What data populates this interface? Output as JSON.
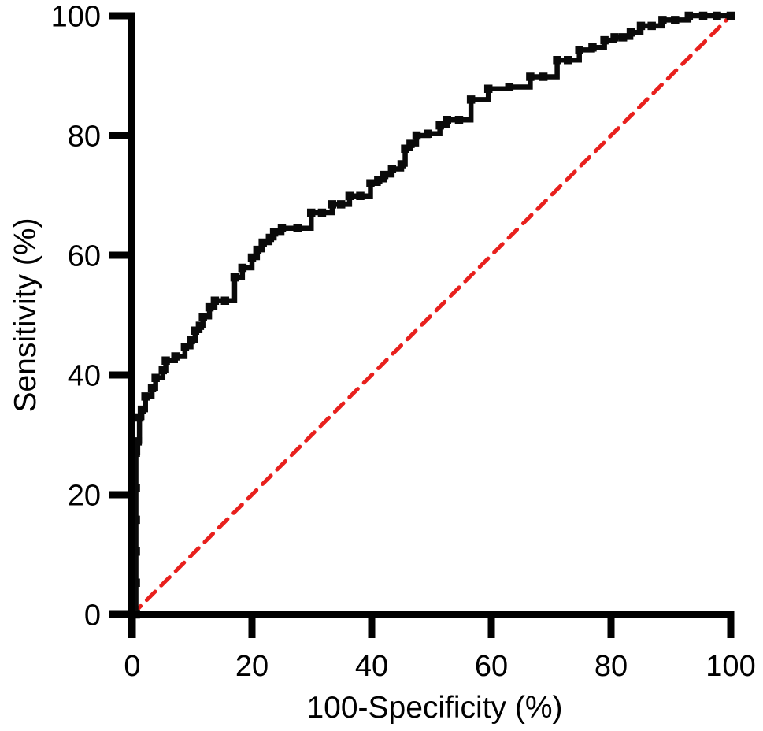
{
  "figure": {
    "background": "#ffffff"
  },
  "axes": {
    "color": "#000000",
    "x_title": "100-Specificity (%)",
    "y_title": "Sensitivity (%)"
  },
  "chart_data": {
    "type": "line",
    "subtype": "roc_step_curve",
    "title": "",
    "xlabel": "100-Specificity (%)",
    "ylabel": "Sensitivity (%)",
    "xlim": [
      0,
      100
    ],
    "ylim": [
      0,
      100
    ],
    "x_ticks": [
      0,
      20,
      40,
      60,
      80,
      100
    ],
    "y_ticks": [
      0,
      20,
      40,
      60,
      80,
      100
    ],
    "grid": false,
    "legend_position": "none",
    "series": [
      {
        "name": "reference-diagonal",
        "type": "line",
        "style": "dashed",
        "color": "#e8201d",
        "line_width": 5,
        "dash": [
          15,
          11
        ],
        "points": [
          [
            0,
            0
          ],
          [
            100,
            100
          ]
        ]
      },
      {
        "name": "roc-curve",
        "type": "step-after",
        "style": "solid",
        "color": "#0a0a0a",
        "line_width": 6.5,
        "marker": "square",
        "marker_size": 10.5,
        "points": [
          [
            0.6,
            0
          ],
          [
            0.6,
            5.3
          ],
          [
            0.6,
            10.5
          ],
          [
            0.6,
            15.8
          ],
          [
            0.6,
            21.1
          ],
          [
            0.6,
            27.0
          ],
          [
            0.9,
            28.9
          ],
          [
            1.2,
            32.9
          ],
          [
            1.6,
            34.2
          ],
          [
            2.2,
            36.4
          ],
          [
            3.3,
            37.8
          ],
          [
            3.9,
            39.5
          ],
          [
            5.1,
            40.8
          ],
          [
            5.6,
            42.4
          ],
          [
            7.2,
            43.1
          ],
          [
            8.8,
            44.7
          ],
          [
            9.8,
            45.8
          ],
          [
            10.5,
            47.4
          ],
          [
            11.3,
            48.2
          ],
          [
            11.8,
            49.7
          ],
          [
            12.9,
            51.3
          ],
          [
            13.8,
            52.4
          ],
          [
            15.5,
            52.4
          ],
          [
            17.1,
            56.3
          ],
          [
            18.4,
            57.9
          ],
          [
            20.0,
            59.6
          ],
          [
            20.9,
            60.9
          ],
          [
            21.8,
            62.1
          ],
          [
            23.0,
            62.9
          ],
          [
            23.7,
            63.8
          ],
          [
            25.0,
            64.5
          ],
          [
            27.6,
            64.5
          ],
          [
            29.9,
            67.1
          ],
          [
            31.7,
            67.1
          ],
          [
            33.4,
            68.5
          ],
          [
            34.9,
            68.5
          ],
          [
            36.3,
            69.9
          ],
          [
            38.1,
            69.9
          ],
          [
            39.8,
            72.0
          ],
          [
            41.1,
            72.6
          ],
          [
            42.1,
            73.4
          ],
          [
            43.4,
            74.4
          ],
          [
            45.0,
            75.2
          ],
          [
            45.6,
            77.8
          ],
          [
            46.5,
            78.6
          ],
          [
            47.5,
            80.0
          ],
          [
            49.4,
            80.3
          ],
          [
            51.4,
            81.7
          ],
          [
            52.6,
            82.6
          ],
          [
            54.6,
            82.6
          ],
          [
            56.6,
            86.0
          ],
          [
            59.5,
            87.8
          ],
          [
            63.0,
            88.1
          ],
          [
            66.5,
            89.8
          ],
          [
            68.7,
            89.8
          ],
          [
            71.0,
            92.6
          ],
          [
            72.8,
            92.6
          ],
          [
            74.7,
            94.3
          ],
          [
            76.9,
            94.7
          ],
          [
            78.9,
            95.9
          ],
          [
            80.6,
            96.4
          ],
          [
            82.0,
            96.4
          ],
          [
            83.3,
            97.2
          ],
          [
            85.0,
            98.3
          ],
          [
            86.8,
            98.3
          ],
          [
            88.6,
            99.3
          ],
          [
            90.7,
            99.3
          ],
          [
            93.0,
            100
          ],
          [
            95.4,
            100
          ],
          [
            97.7,
            100
          ],
          [
            100,
            100
          ]
        ]
      }
    ]
  }
}
